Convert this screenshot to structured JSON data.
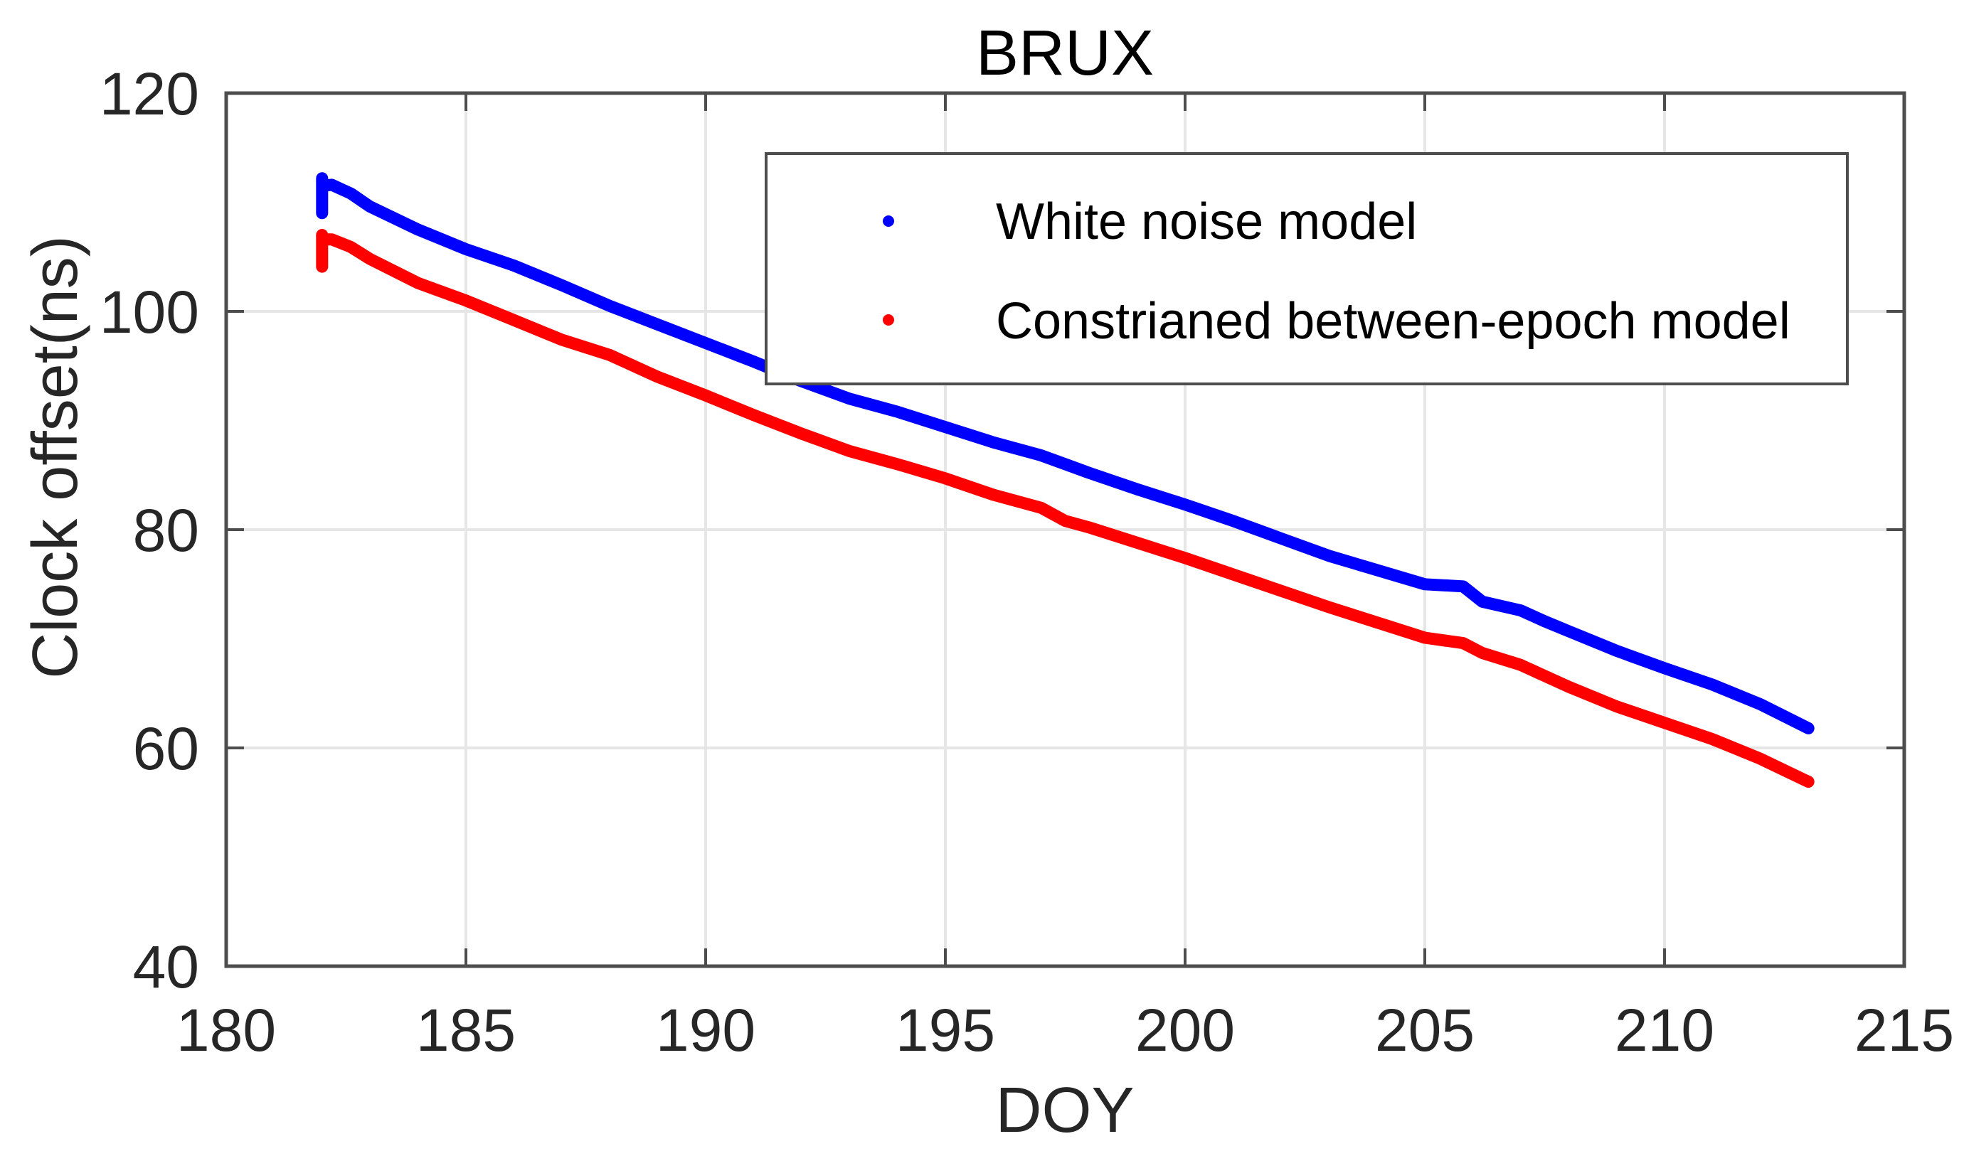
{
  "chart_data": {
    "type": "scatter",
    "title": "BRUX",
    "xlabel": "DOY",
    "ylabel": "Clock offset(ns)",
    "xlim": [
      180,
      215
    ],
    "ylim": [
      40,
      120
    ],
    "xticks": [
      180,
      185,
      190,
      195,
      200,
      205,
      210,
      215
    ],
    "yticks": [
      40,
      60,
      80,
      100,
      120
    ],
    "xtick_labels": [
      "180",
      "185",
      "190",
      "195",
      "200",
      "205",
      "210",
      "215"
    ],
    "ytick_labels": [
      "40",
      "60",
      "80",
      "100",
      "120"
    ],
    "grid": true,
    "legend_position": "upper right (inside)",
    "series": [
      {
        "name": "White noise model",
        "color": "#0000ff",
        "marker": "dot",
        "x": [
          182.0,
          182.0,
          182.0,
          182.2,
          182.6,
          183.0,
          184.0,
          185.0,
          186.0,
          187.0,
          188.0,
          189.0,
          190.0,
          191.0,
          192.0,
          193.0,
          194.0,
          195.0,
          196.0,
          197.0,
          197.5,
          198.0,
          199.0,
          200.0,
          201.0,
          202.0,
          203.0,
          204.0,
          205.0,
          205.8,
          206.2,
          207.0,
          207.5,
          208.0,
          209.0,
          210.0,
          211.0,
          212.0,
          213.0
        ],
        "y": [
          109.0,
          112.2,
          111.5,
          111.6,
          110.8,
          109.6,
          107.5,
          105.7,
          104.2,
          102.4,
          100.5,
          98.8,
          97.1,
          95.4,
          93.6,
          92.0,
          90.8,
          89.4,
          88.0,
          86.8,
          86.0,
          85.2,
          83.7,
          82.3,
          80.8,
          79.2,
          77.6,
          76.3,
          75.0,
          74.8,
          73.4,
          72.6,
          71.6,
          70.7,
          68.9,
          67.3,
          65.8,
          64.0,
          61.8
        ]
      },
      {
        "name": "Constrianed between-epoch model",
        "color": "#ff0000",
        "marker": "dot",
        "x": [
          182.0,
          182.0,
          182.0,
          182.2,
          182.6,
          183.0,
          184.0,
          185.0,
          186.0,
          187.0,
          188.0,
          189.0,
          190.0,
          191.0,
          192.0,
          193.0,
          194.0,
          195.0,
          196.0,
          197.0,
          197.5,
          198.0,
          199.0,
          200.0,
          201.0,
          202.0,
          203.0,
          204.0,
          205.0,
          205.8,
          206.2,
          207.0,
          207.5,
          208.0,
          209.0,
          210.0,
          211.0,
          212.0,
          213.0
        ],
        "y": [
          104.1,
          107.0,
          106.6,
          106.6,
          105.9,
          104.8,
          102.6,
          101.0,
          99.2,
          97.4,
          96.0,
          94.0,
          92.3,
          90.5,
          88.8,
          87.2,
          86.0,
          84.7,
          83.2,
          82.0,
          80.8,
          80.2,
          78.8,
          77.4,
          75.9,
          74.4,
          72.9,
          71.5,
          70.1,
          69.6,
          68.7,
          67.6,
          66.6,
          65.6,
          63.8,
          62.3,
          60.8,
          59.0,
          56.9
        ]
      }
    ]
  },
  "title": "BRUX",
  "axes": {
    "xlabel": "DOY",
    "ylabel": "Clock offset(ns)"
  },
  "legend": {
    "items": [
      {
        "label": "White noise model",
        "color": "#0000ff"
      },
      {
        "label": "Constrianed between-epoch model",
        "color": "#ff0000"
      }
    ]
  },
  "colors": {
    "axis": "#4d4d4d",
    "grid": "#e6e6e6",
    "series_1": "#0000ff",
    "series_2": "#ff0000"
  }
}
